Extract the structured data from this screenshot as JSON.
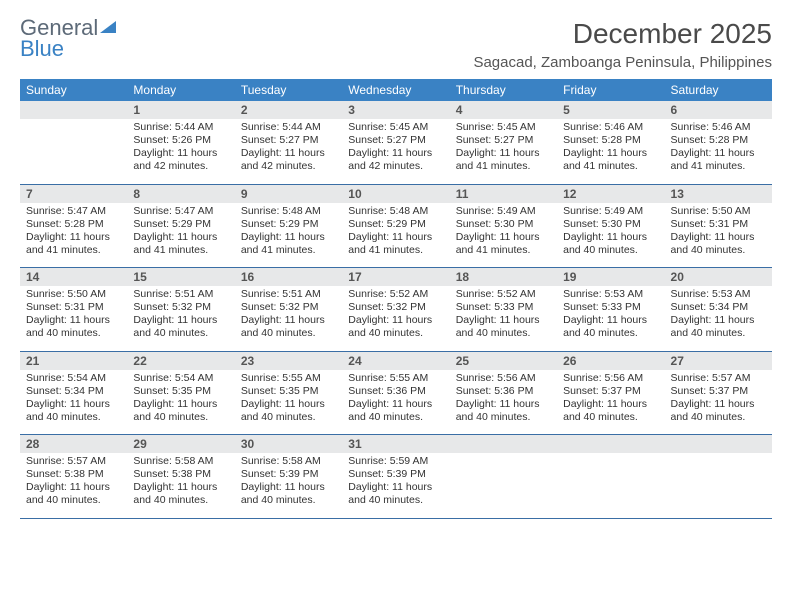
{
  "brand": {
    "word1": "General",
    "word2": "Blue"
  },
  "title": "December 2025",
  "location": "Sagacad, Zamboanga Peninsula, Philippines",
  "colors": {
    "header_bg": "#3a82c4",
    "header_text": "#ffffff",
    "daynum_bg": "#e7e8e9",
    "row_divider": "#3a6ea5",
    "logo_gray": "#5d6a78",
    "logo_blue": "#3a82c4"
  },
  "weekday_labels": [
    "Sunday",
    "Monday",
    "Tuesday",
    "Wednesday",
    "Thursday",
    "Friday",
    "Saturday"
  ],
  "start_weekday": 1,
  "days": [
    {
      "n": 1,
      "sr": "5:44 AM",
      "ss": "5:26 PM",
      "dl": "11 hours and 42 minutes."
    },
    {
      "n": 2,
      "sr": "5:44 AM",
      "ss": "5:27 PM",
      "dl": "11 hours and 42 minutes."
    },
    {
      "n": 3,
      "sr": "5:45 AM",
      "ss": "5:27 PM",
      "dl": "11 hours and 42 minutes."
    },
    {
      "n": 4,
      "sr": "5:45 AM",
      "ss": "5:27 PM",
      "dl": "11 hours and 41 minutes."
    },
    {
      "n": 5,
      "sr": "5:46 AM",
      "ss": "5:28 PM",
      "dl": "11 hours and 41 minutes."
    },
    {
      "n": 6,
      "sr": "5:46 AM",
      "ss": "5:28 PM",
      "dl": "11 hours and 41 minutes."
    },
    {
      "n": 7,
      "sr": "5:47 AM",
      "ss": "5:28 PM",
      "dl": "11 hours and 41 minutes."
    },
    {
      "n": 8,
      "sr": "5:47 AM",
      "ss": "5:29 PM",
      "dl": "11 hours and 41 minutes."
    },
    {
      "n": 9,
      "sr": "5:48 AM",
      "ss": "5:29 PM",
      "dl": "11 hours and 41 minutes."
    },
    {
      "n": 10,
      "sr": "5:48 AM",
      "ss": "5:29 PM",
      "dl": "11 hours and 41 minutes."
    },
    {
      "n": 11,
      "sr": "5:49 AM",
      "ss": "5:30 PM",
      "dl": "11 hours and 41 minutes."
    },
    {
      "n": 12,
      "sr": "5:49 AM",
      "ss": "5:30 PM",
      "dl": "11 hours and 40 minutes."
    },
    {
      "n": 13,
      "sr": "5:50 AM",
      "ss": "5:31 PM",
      "dl": "11 hours and 40 minutes."
    },
    {
      "n": 14,
      "sr": "5:50 AM",
      "ss": "5:31 PM",
      "dl": "11 hours and 40 minutes."
    },
    {
      "n": 15,
      "sr": "5:51 AM",
      "ss": "5:32 PM",
      "dl": "11 hours and 40 minutes."
    },
    {
      "n": 16,
      "sr": "5:51 AM",
      "ss": "5:32 PM",
      "dl": "11 hours and 40 minutes."
    },
    {
      "n": 17,
      "sr": "5:52 AM",
      "ss": "5:32 PM",
      "dl": "11 hours and 40 minutes."
    },
    {
      "n": 18,
      "sr": "5:52 AM",
      "ss": "5:33 PM",
      "dl": "11 hours and 40 minutes."
    },
    {
      "n": 19,
      "sr": "5:53 AM",
      "ss": "5:33 PM",
      "dl": "11 hours and 40 minutes."
    },
    {
      "n": 20,
      "sr": "5:53 AM",
      "ss": "5:34 PM",
      "dl": "11 hours and 40 minutes."
    },
    {
      "n": 21,
      "sr": "5:54 AM",
      "ss": "5:34 PM",
      "dl": "11 hours and 40 minutes."
    },
    {
      "n": 22,
      "sr": "5:54 AM",
      "ss": "5:35 PM",
      "dl": "11 hours and 40 minutes."
    },
    {
      "n": 23,
      "sr": "5:55 AM",
      "ss": "5:35 PM",
      "dl": "11 hours and 40 minutes."
    },
    {
      "n": 24,
      "sr": "5:55 AM",
      "ss": "5:36 PM",
      "dl": "11 hours and 40 minutes."
    },
    {
      "n": 25,
      "sr": "5:56 AM",
      "ss": "5:36 PM",
      "dl": "11 hours and 40 minutes."
    },
    {
      "n": 26,
      "sr": "5:56 AM",
      "ss": "5:37 PM",
      "dl": "11 hours and 40 minutes."
    },
    {
      "n": 27,
      "sr": "5:57 AM",
      "ss": "5:37 PM",
      "dl": "11 hours and 40 minutes."
    },
    {
      "n": 28,
      "sr": "5:57 AM",
      "ss": "5:38 PM",
      "dl": "11 hours and 40 minutes."
    },
    {
      "n": 29,
      "sr": "5:58 AM",
      "ss": "5:38 PM",
      "dl": "11 hours and 40 minutes."
    },
    {
      "n": 30,
      "sr": "5:58 AM",
      "ss": "5:39 PM",
      "dl": "11 hours and 40 minutes."
    },
    {
      "n": 31,
      "sr": "5:59 AM",
      "ss": "5:39 PM",
      "dl": "11 hours and 40 minutes."
    }
  ],
  "labels": {
    "sunrise": "Sunrise:",
    "sunset": "Sunset:",
    "daylight": "Daylight:"
  }
}
